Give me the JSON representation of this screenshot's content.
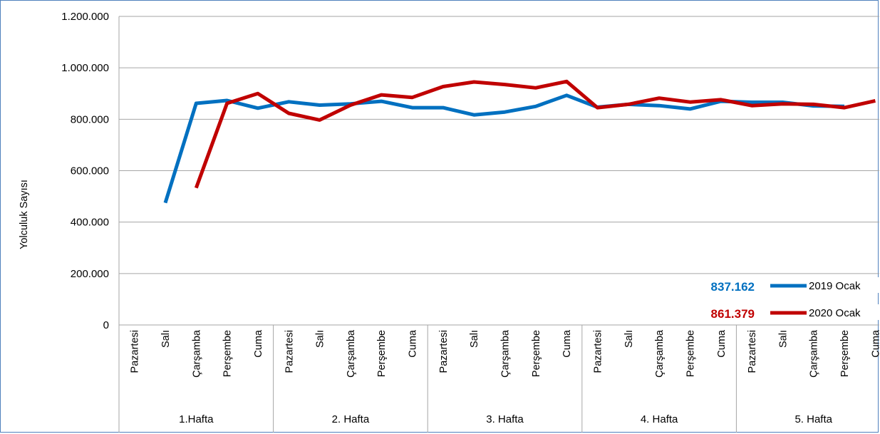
{
  "chart_data": {
    "type": "line",
    "ylabel": "Yolculuk Sayısı",
    "ylim": [
      0,
      1200000
    ],
    "yticks": [
      "0",
      "200.000",
      "400.000",
      "600.000",
      "800.000",
      "1.000.000",
      "1.200.000"
    ],
    "ytick_values": [
      0,
      200000,
      400000,
      600000,
      800000,
      1000000,
      1200000
    ],
    "grid": true,
    "legend_position": "bottom-right",
    "categories": [
      "Pazartesi",
      "Salı",
      "Çarşamba",
      "Perşembe",
      "Cuma",
      "Pazartesi",
      "Salı",
      "Çarşamba",
      "Perşembe",
      "Cuma",
      "Pazartesi",
      "Salı",
      "Çarşamba",
      "Perşembe",
      "Cuma",
      "Pazartesi",
      "Salı",
      "Çarşamba",
      "Perşembe",
      "Cuma",
      "Pazartesi",
      "Salı",
      "Çarşamba",
      "Perşembe",
      "Cuma"
    ],
    "groups": [
      "1.Hafta",
      "2. Hafta",
      "3. Hafta",
      "4. Hafta",
      "5. Hafta"
    ],
    "series": [
      {
        "name": "2019 Ocak",
        "color": "#0070c0",
        "average_label": "837.162",
        "values": [
          null,
          475000,
          862000,
          873000,
          843000,
          868000,
          855000,
          860000,
          870000,
          845000,
          845000,
          817000,
          828000,
          850000,
          893000,
          847000,
          858000,
          853000,
          840000,
          870000,
          866000,
          866000,
          852000,
          850000,
          null
        ]
      },
      {
        "name": "2020 Ocak",
        "color": "#c00000",
        "average_label": "861.379",
        "values": [
          null,
          null,
          533000,
          862000,
          900000,
          823000,
          797000,
          855000,
          895000,
          885000,
          927000,
          945000,
          935000,
          922000,
          947000,
          845000,
          858000,
          882000,
          867000,
          876000,
          853000,
          860000,
          858000,
          845000,
          872000
        ]
      }
    ]
  }
}
